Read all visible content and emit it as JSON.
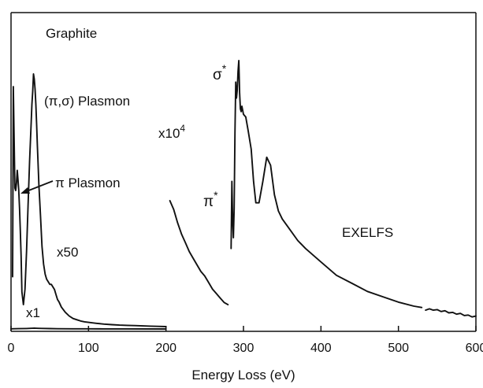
{
  "chart_data": {
    "type": "line",
    "xlabel": "Energy Loss (eV)",
    "ylabel": "",
    "xlim": [
      0,
      600
    ],
    "x_ticks": [
      "0",
      "100",
      "200",
      "300",
      "400",
      "500",
      "600"
    ],
    "grid": false,
    "legend": "none",
    "annotations": {
      "material": "Graphite",
      "pi_sigma_plasmon": "(π,σ) Plasmon",
      "pi_plasmon": "π Plasmon",
      "mult_x50": "x50",
      "mult_x1": "x1",
      "mult_x10_4_base": "x10",
      "mult_x10_4_exp": "4",
      "sigma_star_base": "σ",
      "sigma_star_sup": "*",
      "pi_star_base": "π",
      "pi_star_sup": "*",
      "exelfs": "EXELFS"
    },
    "series": [
      {
        "x": [
          2,
          3,
          4,
          5,
          6,
          7,
          8,
          9,
          10,
          11,
          12,
          13,
          14,
          16,
          18,
          20,
          22,
          24,
          26,
          27,
          28,
          29,
          30,
          31,
          32,
          33,
          34,
          36,
          38,
          40,
          42,
          44,
          46,
          48,
          50,
          52,
          54,
          56,
          58,
          60,
          62,
          65,
          70,
          75,
          80,
          85,
          90,
          95,
          100,
          110,
          120,
          130,
          140,
          150,
          160,
          170,
          180,
          190,
          200
        ],
        "y": [
          0.2,
          0.95,
          0.75,
          0.55,
          0.54,
          0.57,
          0.62,
          0.58,
          0.54,
          0.47,
          0.38,
          0.28,
          0.14,
          0.09,
          0.15,
          0.3,
          0.48,
          0.66,
          0.81,
          0.88,
          0.93,
          1.0,
          0.98,
          0.94,
          0.88,
          0.8,
          0.72,
          0.56,
          0.44,
          0.32,
          0.25,
          0.21,
          0.19,
          0.18,
          0.17,
          0.17,
          0.16,
          0.15,
          0.13,
          0.11,
          0.1,
          0.08,
          0.06,
          0.045,
          0.035,
          0.03,
          0.025,
          0.022,
          0.02,
          0.016,
          0.013,
          0.011,
          0.009,
          0.008,
          0.007,
          0.006,
          0.005,
          0.004,
          0.003
        ]
      },
      {
        "x": [
          0,
          10,
          20,
          25,
          28,
          30,
          32,
          35,
          40,
          50,
          60,
          80,
          100,
          120,
          150,
          200
        ],
        "y": [
          0.005,
          0.01,
          0.015,
          0.022,
          0.025,
          0.026,
          0.025,
          0.022,
          0.018,
          0.012,
          0.009,
          0.006,
          0.004,
          0.003,
          0.002,
          0.001
        ]
      },
      {
        "x": [
          205,
          210,
          215,
          220,
          225,
          230,
          235,
          240,
          245,
          250,
          255,
          260,
          265,
          270,
          275,
          280
        ],
        "y": [
          0.58,
          0.54,
          0.48,
          0.43,
          0.39,
          0.35,
          0.32,
          0.29,
          0.26,
          0.24,
          0.21,
          0.18,
          0.16,
          0.14,
          0.12,
          0.11
        ]
      },
      {
        "x": [
          284,
          285,
          286,
          287,
          288,
          289,
          290,
          291,
          292,
          293,
          294,
          295,
          296,
          297,
          298,
          300,
          303,
          306,
          310,
          313,
          316,
          320,
          325,
          330,
          335,
          340,
          345,
          350,
          360,
          370,
          380,
          400,
          420,
          440,
          460,
          480,
          500,
          520,
          530
        ],
        "y": [
          0.3,
          0.55,
          0.41,
          0.34,
          0.45,
          0.73,
          0.92,
          0.86,
          0.89,
          0.96,
          1.0,
          0.88,
          0.82,
          0.81,
          0.83,
          0.8,
          0.79,
          0.74,
          0.67,
          0.55,
          0.47,
          0.47,
          0.55,
          0.64,
          0.61,
          0.5,
          0.44,
          0.41,
          0.37,
          0.33,
          0.3,
          0.25,
          0.2,
          0.17,
          0.14,
          0.12,
          0.1,
          0.085,
          0.08
        ]
      },
      {
        "x": [
          535,
          540,
          545,
          550,
          555,
          560,
          565,
          570,
          575,
          580,
          585,
          590,
          595,
          600
        ],
        "y": [
          0.07,
          0.075,
          0.07,
          0.072,
          0.065,
          0.068,
          0.06,
          0.062,
          0.055,
          0.058,
          0.05,
          0.052,
          0.045,
          0.048
        ]
      }
    ]
  }
}
